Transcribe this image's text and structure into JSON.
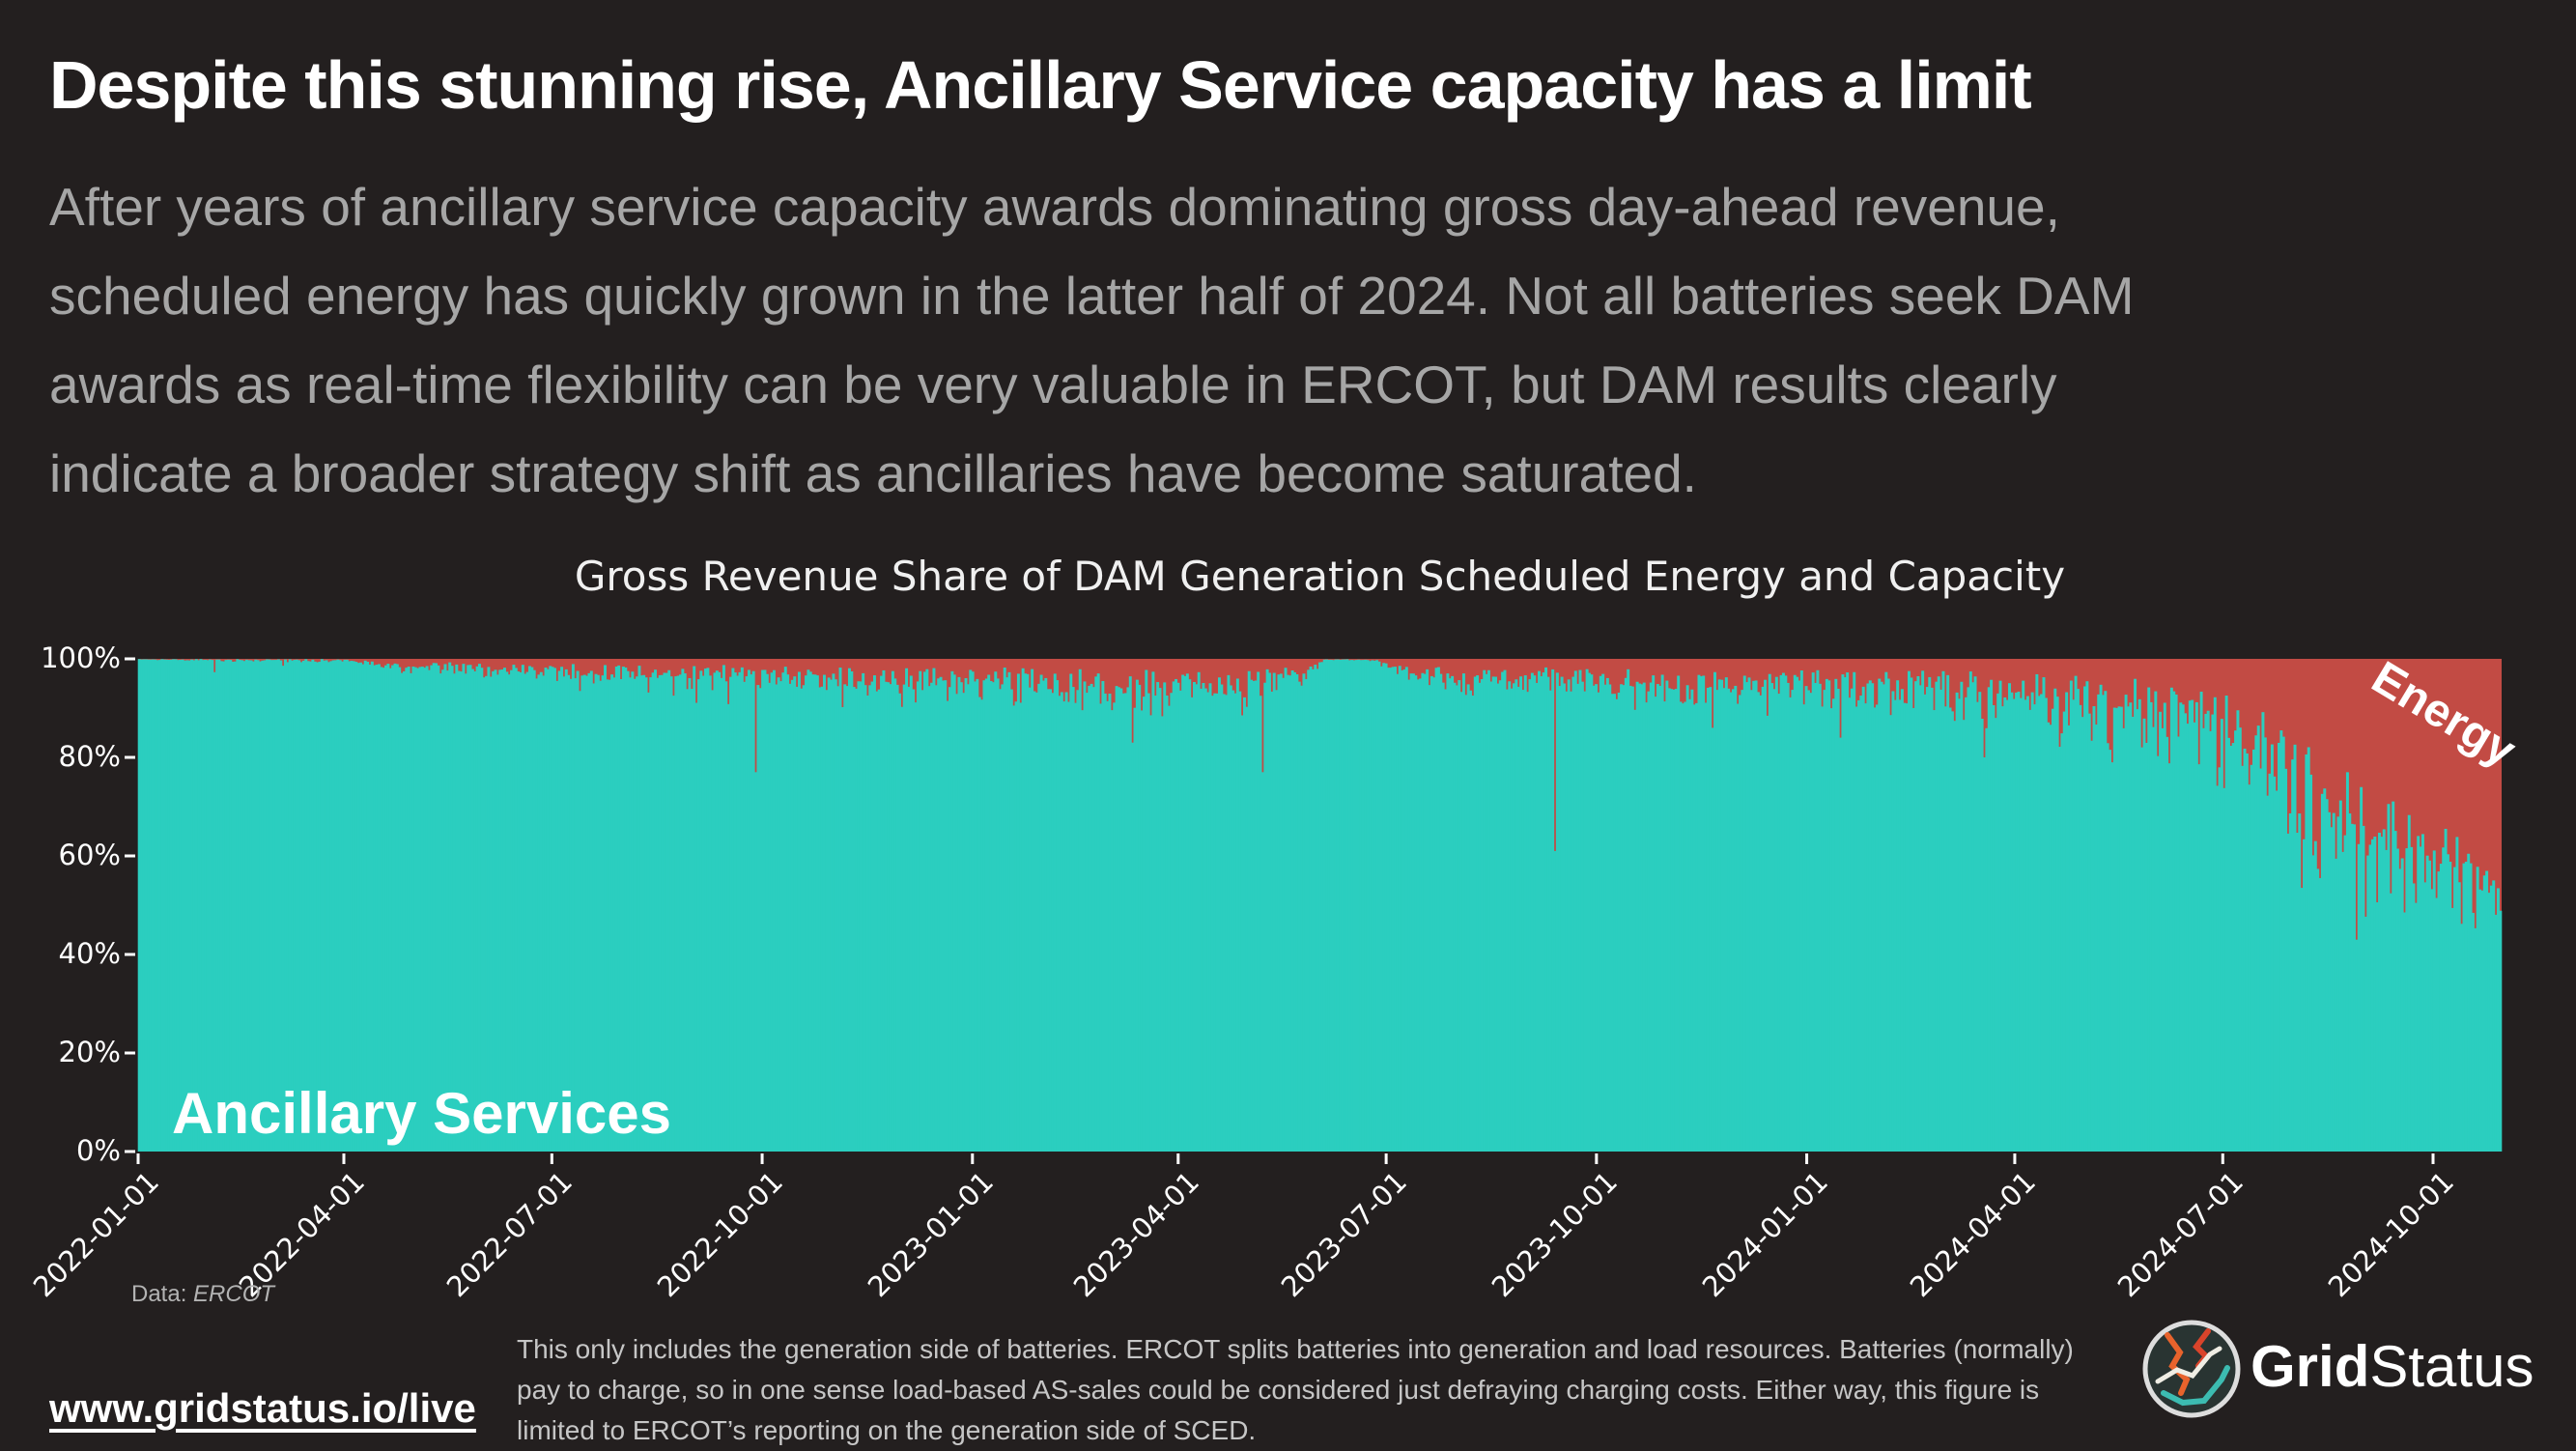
{
  "header": {
    "title": "Despite this stunning rise, Ancillary Service capacity has a limit",
    "subtitle": "After years of ancillary service capacity awards dominating gross day-ahead revenue,\nscheduled energy has quickly grown in the latter half of 2024. Not all batteries seek DAM\nawards as real-time flexibility can be very valuable in ERCOT, but DAM results clearly\nindicate a broader strategy shift as ancillaries have become saturated."
  },
  "chart": {
    "title": "Gross Revenue Share of DAM Generation Scheduled Energy and Capacity",
    "ancillary_label": "Ancillary Services",
    "energy_label": "Energy",
    "source_prefix": "Data:",
    "source_value": "ERCOT"
  },
  "chart_data": {
    "type": "area",
    "stacking": "percent",
    "bar_resolution": "daily",
    "title": "Gross Revenue Share of DAM Generation Scheduled Energy and Capacity",
    "series_names": [
      "Ancillary Services",
      "Energy"
    ],
    "x_range": [
      "2022-01-01",
      "2024-10-31"
    ],
    "ylim": [
      0,
      100
    ],
    "y_unit": "%",
    "grid": false,
    "colors": {
      "ancillary": "#2bcebf",
      "energy": "#c24b44",
      "tick": "#ffffff"
    },
    "y_ticks": [
      {
        "value": 100,
        "label": "100%"
      },
      {
        "value": 80,
        "label": "80%"
      },
      {
        "value": 60,
        "label": "60%"
      },
      {
        "value": 40,
        "label": "40%"
      },
      {
        "value": 20,
        "label": "20%"
      },
      {
        "value": 0,
        "label": "0%"
      }
    ],
    "x_ticks": [
      "2022-01-01",
      "2022-04-01",
      "2022-07-01",
      "2022-10-01",
      "2023-01-01",
      "2023-04-01",
      "2023-07-01",
      "2023-10-01",
      "2024-01-01",
      "2024-04-01",
      "2024-07-01",
      "2024-10-01"
    ],
    "ancillary_share_control_points": [
      [
        "2022-01-01",
        100,
        0.2
      ],
      [
        "2022-02-10",
        100,
        0.4
      ],
      [
        "2022-04-01",
        100,
        0.6
      ],
      [
        "2022-04-25",
        99.6,
        1.6
      ],
      [
        "2022-06-01",
        99.4,
        2.6
      ],
      [
        "2022-07-01",
        99.2,
        3.5
      ],
      [
        "2022-08-01",
        99.2,
        4.2
      ],
      [
        "2022-09-01",
        99.0,
        4.8
      ],
      [
        "2022-10-01",
        99.0,
        5.2
      ],
      [
        "2022-11-01",
        98.8,
        5.2
      ],
      [
        "2022-12-01",
        98.8,
        5.6
      ],
      [
        "2023-01-01",
        99.0,
        5.4
      ],
      [
        "2023-02-01",
        98.8,
        6.0
      ],
      [
        "2023-03-01",
        98.6,
        6.6
      ],
      [
        "2023-04-01",
        98.4,
        7.0
      ],
      [
        "2023-05-01",
        98.6,
        6.2
      ],
      [
        "2023-05-29",
        99.2,
        2.6
      ],
      [
        "2023-06-04",
        99.95,
        0.2
      ],
      [
        "2023-06-26",
        99.95,
        0.3
      ],
      [
        "2023-07-04",
        99.4,
        2.2
      ],
      [
        "2023-07-20",
        99.0,
        4.0
      ],
      [
        "2023-08-10",
        98.6,
        5.0
      ],
      [
        "2023-09-01",
        98.6,
        5.4
      ],
      [
        "2023-10-01",
        98.4,
        6.2
      ],
      [
        "2023-11-01",
        98.2,
        6.6
      ],
      [
        "2023-12-01",
        98.2,
        6.6
      ],
      [
        "2024-01-01",
        98.8,
        6.2
      ],
      [
        "2024-02-01",
        98.4,
        6.6
      ],
      [
        "2024-03-01",
        98.0,
        7.4
      ],
      [
        "2024-04-01",
        97.6,
        8.6
      ],
      [
        "2024-05-01",
        97.0,
        10.0
      ],
      [
        "2024-06-01",
        97.0,
        12.0
      ],
      [
        "2024-06-20",
        96.0,
        15.0
      ],
      [
        "2024-07-08",
        93.0,
        18.0
      ],
      [
        "2024-07-25",
        90.0,
        20.0
      ],
      [
        "2024-08-10",
        85.0,
        22.0
      ],
      [
        "2024-08-25",
        80.0,
        22.0
      ],
      [
        "2024-09-10",
        74.0,
        18.0
      ],
      [
        "2024-09-25",
        68.0,
        15.0
      ],
      [
        "2024-10-10",
        66.0,
        14.0
      ],
      [
        "2024-10-20",
        60.0,
        12.0
      ],
      [
        "2024-10-31",
        56.0,
        10.0
      ]
    ],
    "notable_dips": [
      [
        "2022-02-03",
        97.3
      ],
      [
        "2022-03-05",
        98.6
      ],
      [
        "2022-09-28",
        77
      ],
      [
        "2023-03-12",
        83
      ],
      [
        "2023-05-08",
        77
      ],
      [
        "2023-09-13",
        61
      ],
      [
        "2023-11-21",
        86
      ],
      [
        "2024-01-16",
        84
      ],
      [
        "2024-03-19",
        80
      ],
      [
        "2024-05-14",
        79
      ],
      [
        "2024-08-29",
        43
      ]
    ]
  },
  "footer": {
    "footnote": "This only includes the generation side of batteries. ERCOT splits batteries into generation and load resources. Batteries (normally)\npay to charge, so in one sense load-based AS-sales could be considered just defraying charging costs. Either way, this figure is\nlimited to ERCOT’s reporting on the generation side of SCED.",
    "link": "www.gridstatus.io/live",
    "brand_grid": "Grid",
    "brand_status": "Status"
  }
}
